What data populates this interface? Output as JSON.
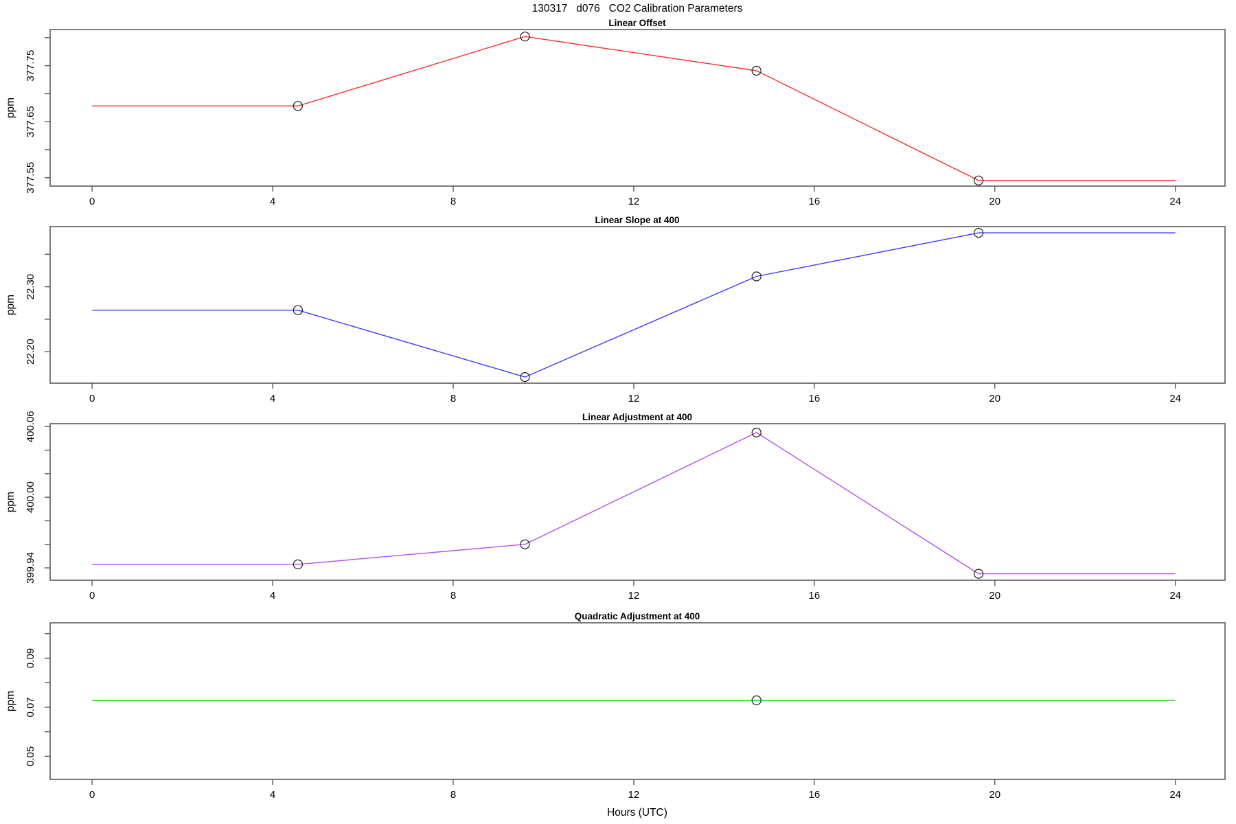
{
  "title": "130317   d076   CO2 Calibration Parameters",
  "xlabel": "Hours (UTC)",
  "frame_color": "#5a5a5a",
  "marker_color": "#1a1a1a",
  "text_color": "#000000",
  "chart_data": {
    "type": "line",
    "title": "130317   d076   CO2 Calibration Parameters",
    "xlabel": "Hours (UTC)",
    "xlim": [
      -0.93,
      25.1
    ],
    "xticks": [
      0,
      4,
      8,
      12,
      16,
      20,
      24
    ],
    "grid": "off",
    "panels": [
      {
        "title": "Linear Offset",
        "ylabel": "ppm",
        "color": "#ff2d2d",
        "ylim": [
          377.535,
          377.8145
        ],
        "yticks": [
          {
            "v": 377.55,
            "label": "377.55"
          },
          {
            "v": 377.6,
            "label": ""
          },
          {
            "v": 377.65,
            "label": "377.65"
          },
          {
            "v": 377.7,
            "label": ""
          },
          {
            "v": 377.75,
            "label": "377.75"
          },
          {
            "v": 377.8,
            "label": ""
          }
        ],
        "line": {
          "x": [
            0,
            4.56,
            9.59,
            14.72,
            19.64,
            24
          ],
          "y": [
            377.678,
            377.678,
            377.802,
            377.741,
            377.545,
            377.545
          ]
        },
        "points": {
          "x": [
            4.56,
            9.59,
            14.72,
            19.64
          ],
          "y": [
            377.678,
            377.802,
            377.741,
            377.545
          ]
        }
      },
      {
        "title": "Linear Slope at 400",
        "ylabel": "ppm",
        "color": "#3a3aff",
        "ylim": [
          22.1516,
          22.3926
        ],
        "yticks": [
          {
            "v": 22.2,
            "label": "22.20"
          },
          {
            "v": 22.25,
            "label": ""
          },
          {
            "v": 22.3,
            "label": "22.30"
          },
          {
            "v": 22.35,
            "label": ""
          }
        ],
        "line": {
          "x": [
            0,
            4.56,
            9.59,
            14.72,
            19.64,
            24
          ],
          "y": [
            22.264,
            22.264,
            22.161,
            22.316,
            22.383,
            22.383
          ]
        },
        "points": {
          "x": [
            4.56,
            9.59,
            14.72,
            19.64
          ],
          "y": [
            22.264,
            22.161,
            22.316,
            22.383
          ]
        }
      },
      {
        "title": "Linear Adjustment at 400",
        "ylabel": "ppm",
        "color": "#b44fee",
        "ylim": [
          399.9295,
          400.0625
        ],
        "yticks": [
          {
            "v": 399.94,
            "label": "399.94"
          },
          {
            "v": 399.96,
            "label": ""
          },
          {
            "v": 399.98,
            "label": ""
          },
          {
            "v": 400.0,
            "label": "400.00"
          },
          {
            "v": 400.02,
            "label": ""
          },
          {
            "v": 400.04,
            "label": ""
          },
          {
            "v": 400.06,
            "label": "400.06"
          }
        ],
        "line": {
          "x": [
            0,
            4.56,
            9.59,
            14.72,
            19.64,
            24
          ],
          "y": [
            399.943,
            399.943,
            399.96,
            400.055,
            399.935,
            399.935
          ]
        },
        "points": {
          "x": [
            4.56,
            9.59,
            14.72,
            19.64
          ],
          "y": [
            399.943,
            399.96,
            400.055,
            399.935
          ]
        }
      },
      {
        "title": "Quadratic Adjustment at 400",
        "ylabel": "ppm",
        "color": "#00cc00",
        "ylim": [
          0.0406,
          0.1044
        ],
        "yticks": [
          {
            "v": 0.05,
            "label": "0.05"
          },
          {
            "v": 0.06,
            "label": ""
          },
          {
            "v": 0.07,
            "label": "0.07"
          },
          {
            "v": 0.08,
            "label": ""
          },
          {
            "v": 0.09,
            "label": "0.09"
          },
          {
            "v": 0.1,
            "label": ""
          }
        ],
        "line": {
          "x": [
            0,
            24
          ],
          "y": [
            0.0728,
            0.0728
          ]
        },
        "points": {
          "x": [
            14.72
          ],
          "y": [
            0.0728
          ]
        }
      }
    ]
  }
}
